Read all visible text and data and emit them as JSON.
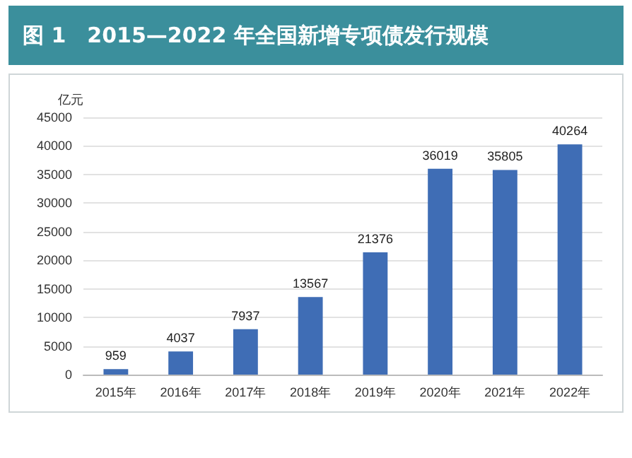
{
  "chart_data": {
    "type": "bar",
    "title": "图 1　2015—2022 年全国新增专项债发行规模",
    "ylabel": "亿元",
    "categories": [
      "2015年",
      "2016年",
      "2017年",
      "2018年",
      "2019年",
      "2020年",
      "2021年",
      "2022年"
    ],
    "values": [
      959,
      4037,
      7937,
      13567,
      21376,
      36019,
      35805,
      40264
    ],
    "color": "#3f6db5",
    "ylim": [
      0,
      45000
    ],
    "yticks": [
      0,
      5000,
      10000,
      15000,
      20000,
      25000,
      30000,
      35000,
      40000,
      45000
    ],
    "grid": "y",
    "data_labels": true
  }
}
